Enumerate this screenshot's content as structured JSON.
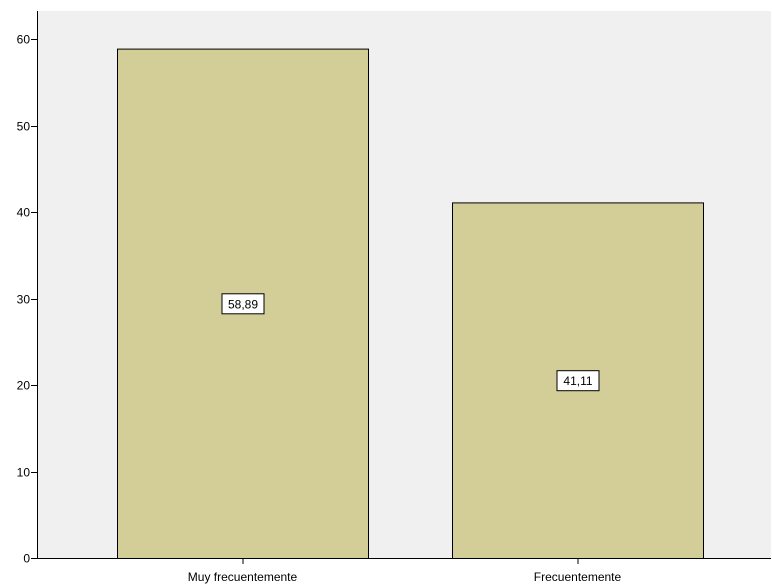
{
  "chart_data": {
    "type": "bar",
    "title": "",
    "xlabel": "",
    "ylabel": "",
    "categories": [
      "Muy frecuentemente",
      "Frecuentemente"
    ],
    "values": [
      58.89,
      41.11
    ],
    "data_labels": [
      "58,89",
      "41,11"
    ],
    "ylim": [
      0,
      60
    ],
    "yticks": [
      0,
      10,
      20,
      30,
      40,
      50,
      60
    ],
    "ytick_labels": [
      "0",
      "10",
      "20",
      "30",
      "40",
      "50",
      "60"
    ],
    "grid": false,
    "legend": "none",
    "colors": {
      "plot_background": "#f0f0f0",
      "bar_fill": "#d3ce97",
      "bar_stroke": "#000000",
      "axis": "#000000",
      "label_box_fill": "#ffffff"
    }
  }
}
